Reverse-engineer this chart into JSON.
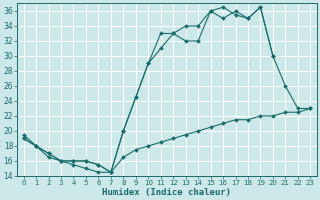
{
  "xlabel": "Humidex (Indice chaleur)",
  "bg_color": "#cce8e8",
  "grid_color": "#ffffff",
  "line_color": "#1a6b6b",
  "xlim_min": -0.5,
  "xlim_max": 23.5,
  "ylim_min": 14,
  "ylim_max": 37,
  "xticks": [
    0,
    1,
    2,
    3,
    4,
    5,
    6,
    7,
    8,
    9,
    10,
    11,
    12,
    13,
    14,
    15,
    16,
    17,
    18,
    19,
    20,
    21,
    22,
    23
  ],
  "yticks": [
    14,
    16,
    18,
    20,
    22,
    24,
    26,
    28,
    30,
    32,
    34,
    36
  ],
  "line1_x": [
    0,
    1,
    2,
    3,
    4,
    5,
    6,
    7,
    8,
    9,
    10,
    11,
    12,
    13,
    14,
    15,
    16,
    17,
    18,
    19,
    20,
    21,
    22,
    23
  ],
  "line1_y": [
    19.0,
    18.0,
    17.0,
    16.0,
    16.0,
    16.0,
    15.5,
    14.5,
    20.0,
    24.5,
    29.0,
    31.0,
    33.0,
    32.0,
    32.0,
    36.0,
    35.0,
    36.0,
    35.0,
    36.5,
    30.0,
    26.0,
    23.0,
    23.0
  ],
  "line2_x": [
    0,
    1,
    2,
    3,
    4,
    5,
    6,
    7,
    8,
    9,
    10,
    11,
    12,
    13,
    14,
    15,
    16,
    17,
    18,
    19,
    20
  ],
  "line2_y": [
    19.0,
    18.0,
    17.0,
    16.0,
    16.0,
    16.0,
    15.5,
    14.5,
    20.0,
    24.5,
    29.0,
    33.0,
    33.0,
    34.0,
    34.0,
    36.0,
    36.5,
    35.5,
    35.0,
    36.5,
    30.0
  ],
  "line3_x": [
    0,
    1,
    2,
    3,
    4,
    5,
    6,
    7,
    8,
    9,
    10,
    11,
    12,
    13,
    14,
    15,
    16,
    17,
    18,
    19,
    20,
    21,
    22,
    23
  ],
  "line3_y": [
    19.5,
    18.0,
    16.5,
    16.0,
    15.5,
    15.0,
    14.5,
    14.5,
    16.5,
    17.5,
    18.0,
    18.5,
    19.0,
    19.5,
    20.0,
    20.5,
    21.0,
    21.5,
    21.5,
    22.0,
    22.0,
    22.5,
    22.5,
    23.0
  ]
}
